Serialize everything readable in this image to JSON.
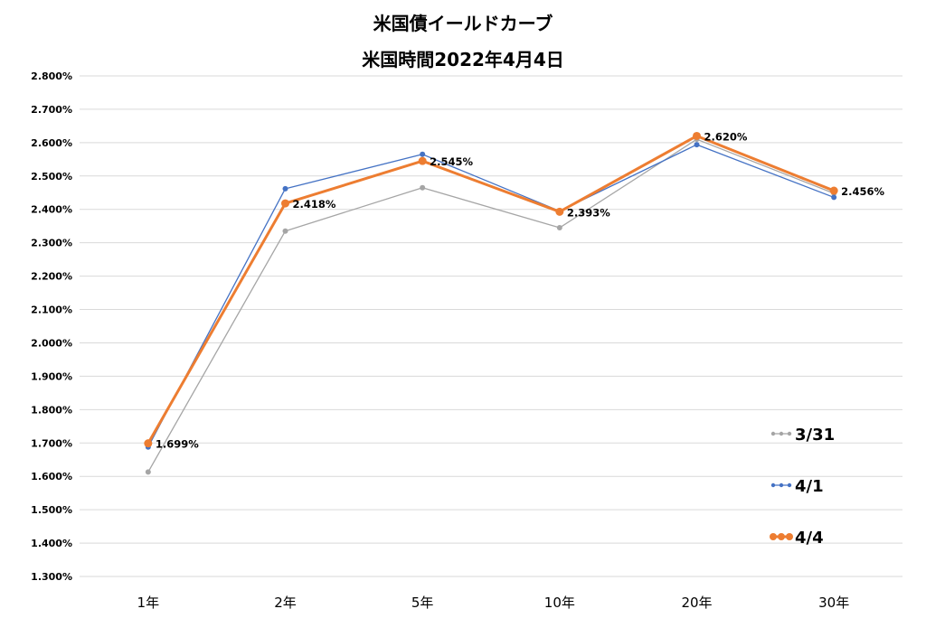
{
  "chart_data": {
    "type": "line",
    "title": "米国債イールドカーブ",
    "subtitle": "米国時間2022年4月4日",
    "categories": [
      "1年",
      "2年",
      "5年",
      "10年",
      "20年",
      "30年"
    ],
    "ylim": [
      1.3,
      2.8
    ],
    "ytick_step": 0.1,
    "ytick_labels": [
      "1.300%",
      "1.400%",
      "1.500%",
      "1.600%",
      "1.700%",
      "1.800%",
      "1.900%",
      "2.000%",
      "2.100%",
      "2.200%",
      "2.300%",
      "2.400%",
      "2.500%",
      "2.600%",
      "2.700%",
      "2.800%"
    ],
    "grid": true,
    "legend_position": "bottom-right",
    "series": [
      {
        "name": "3/31",
        "color": "#A5A5A5",
        "values": [
          1.613,
          2.335,
          2.465,
          2.345,
          2.61,
          2.448
        ]
      },
      {
        "name": "4/1",
        "color": "#4472C4",
        "values": [
          1.688,
          2.462,
          2.565,
          2.395,
          2.594,
          2.436
        ]
      },
      {
        "name": "4/4",
        "color": "#ED7D31",
        "values": [
          1.699,
          2.418,
          2.545,
          2.393,
          2.62,
          2.456
        ]
      }
    ],
    "data_labels": {
      "series": "4/4",
      "texts": [
        "1.699%",
        "2.418%",
        "2.545%",
        "2.393%",
        "2.620%",
        "2.456%"
      ]
    }
  }
}
